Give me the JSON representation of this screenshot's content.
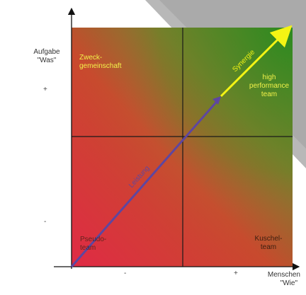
{
  "diagram": {
    "y_axis_label_line1": "Aufgabe",
    "y_axis_label_line2": "\"Was\"",
    "y_axis_plus": "+",
    "y_axis_minus": "-",
    "x_axis_plus": "+",
    "x_axis_minus": "-",
    "x_axis_label_line1": "Menschen",
    "x_axis_label_line2": "\"Wie\"",
    "quadrants": {
      "top_left": [
        "Zweck-",
        "gemeinschaft"
      ],
      "top_right": [
        "high",
        "performance",
        "team"
      ],
      "bottom_left": [
        "Pseudo-",
        "team"
      ],
      "bottom_right": [
        "Kuschel-",
        "team"
      ]
    },
    "arrow_lower_label": "Leistung",
    "arrow_upper_label": "Synergie",
    "colors": {
      "red": "#dc2f3f",
      "green": "#3a8a22",
      "arrow_lower": "#6a4fa6",
      "arrow_upper": "#f4f414",
      "quadrant_text_light": "#f2f24a",
      "quadrant_text_dark": "#3a1f10"
    }
  }
}
